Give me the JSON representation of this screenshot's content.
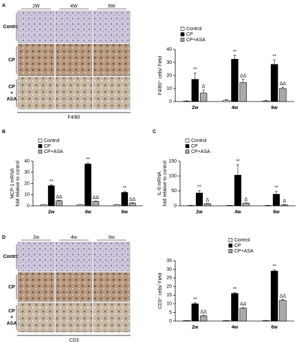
{
  "chart_data": [
    {
      "type": "bar",
      "panel": "A",
      "ylabel": [
        "F4/80⁺ cells/ Field"
      ],
      "categories": [
        "2w",
        "4w",
        "6w"
      ],
      "ylim": [
        0,
        40
      ],
      "yticks": [
        0,
        10,
        20,
        30,
        40
      ],
      "legend": "upper left",
      "series": [
        {
          "name": "Control",
          "color": "#ffffff",
          "values": [
            0.3,
            1,
            0.5
          ],
          "errors": [
            0.2,
            0.4,
            0.3
          ]
        },
        {
          "name": "CP",
          "color": "#000000",
          "values": [
            17,
            32.5,
            28.5
          ],
          "errors": [
            5,
            3,
            3.5
          ],
          "significance": [
            "**",
            "**",
            "**"
          ]
        },
        {
          "name": "CP+ASA",
          "color": "#aaaaaa",
          "values": [
            6.5,
            14.5,
            10
          ],
          "errors": [
            2.5,
            2.5,
            1
          ],
          "significance": [
            "Δ",
            "ΔΔ",
            "ΔΔ"
          ]
        }
      ]
    },
    {
      "type": "bar",
      "panel": "B",
      "ylabel": [
        "MCP-1 mRNA",
        "fold relative to control"
      ],
      "categories": [
        "2w",
        "4w",
        "6w"
      ],
      "ylim": [
        0,
        40
      ],
      "yticks": [
        0,
        10,
        20,
        30,
        40
      ],
      "legend": "upper left",
      "series": [
        {
          "name": "Control",
          "color": "#ffffff",
          "values": [
            1,
            1,
            1
          ],
          "errors": [
            0.2,
            0.2,
            0.2
          ]
        },
        {
          "name": "CP",
          "color": "#000000",
          "values": [
            18,
            37.5,
            12
          ],
          "errors": [
            0.8,
            0.8,
            0.8
          ],
          "significance": [
            "**",
            "**",
            "**"
          ]
        },
        {
          "name": "CP+ASA",
          "color": "#aaaaaa",
          "values": [
            4.5,
            4,
            2.5
          ],
          "errors": [
            0.3,
            0.3,
            0.3
          ],
          "significance": [
            "ΔΔ",
            "ΔΔ",
            "ΔΔ"
          ]
        }
      ]
    },
    {
      "type": "bar",
      "panel": "C",
      "ylabel": [
        "IL-6 mRNA",
        "fold relative to control"
      ],
      "categories": [
        "2w",
        "4w",
        "6w"
      ],
      "ylim": [
        0,
        150
      ],
      "yticks": [
        0,
        50,
        100,
        150
      ],
      "legend": "upper left",
      "series": [
        {
          "name": "Control",
          "color": "#ffffff",
          "values": [
            1,
            1,
            1
          ],
          "errors": [
            0.5,
            0.5,
            0.5
          ]
        },
        {
          "name": "CP",
          "color": "#000000",
          "values": [
            43,
            103,
            39
          ],
          "errors": [
            8,
            35,
            10
          ],
          "significance": [
            "**",
            "**",
            "**"
          ]
        },
        {
          "name": "CP+ASA",
          "color": "#aaaaaa",
          "values": [
            7,
            9,
            3
          ],
          "errors": [
            1,
            1,
            1
          ],
          "significance": [
            "Δ",
            "Δ",
            "Δ"
          ]
        }
      ]
    },
    {
      "type": "bar",
      "panel": "D",
      "ylabel": [
        "CD3⁺ cells/ Field"
      ],
      "categories": [
        "2w",
        "4w",
        "6w"
      ],
      "ylim": [
        0,
        35
      ],
      "yticks": [
        0,
        5,
        10,
        15,
        20,
        25,
        30,
        35
      ],
      "legend": "upper right",
      "series": [
        {
          "name": "Control",
          "color": "#ffffff",
          "values": [
            0.3,
            0.3,
            0.3
          ],
          "errors": [
            0.1,
            0.1,
            0.1
          ]
        },
        {
          "name": "CP",
          "color": "#000000",
          "values": [
            10,
            16,
            29
          ],
          "errors": [
            0.5,
            0.5,
            0.7
          ],
          "significance": [
            "**",
            "**",
            "**"
          ]
        },
        {
          "name": "CP+ASA",
          "color": "#aaaaaa",
          "values": [
            3,
            7.5,
            12
          ],
          "errors": [
            0.3,
            0.3,
            0.4
          ],
          "significance": [
            "ΔΔ",
            "ΔΔ",
            "ΔΔ"
          ]
        }
      ]
    }
  ],
  "image_grids": [
    {
      "columns": [
        "2W",
        "4W",
        "6W"
      ],
      "rows": [
        [
          "Control"
        ],
        [
          "CP"
        ],
        [
          "CP",
          "+",
          "ASA"
        ]
      ],
      "caption": "F4/80"
    },
    {
      "columns": [
        "2w",
        "4w",
        "6w"
      ],
      "rows": [
        [
          "Control"
        ],
        [
          "CP"
        ],
        [
          "CP",
          "+",
          "ASA"
        ]
      ],
      "caption": "CD3"
    }
  ]
}
